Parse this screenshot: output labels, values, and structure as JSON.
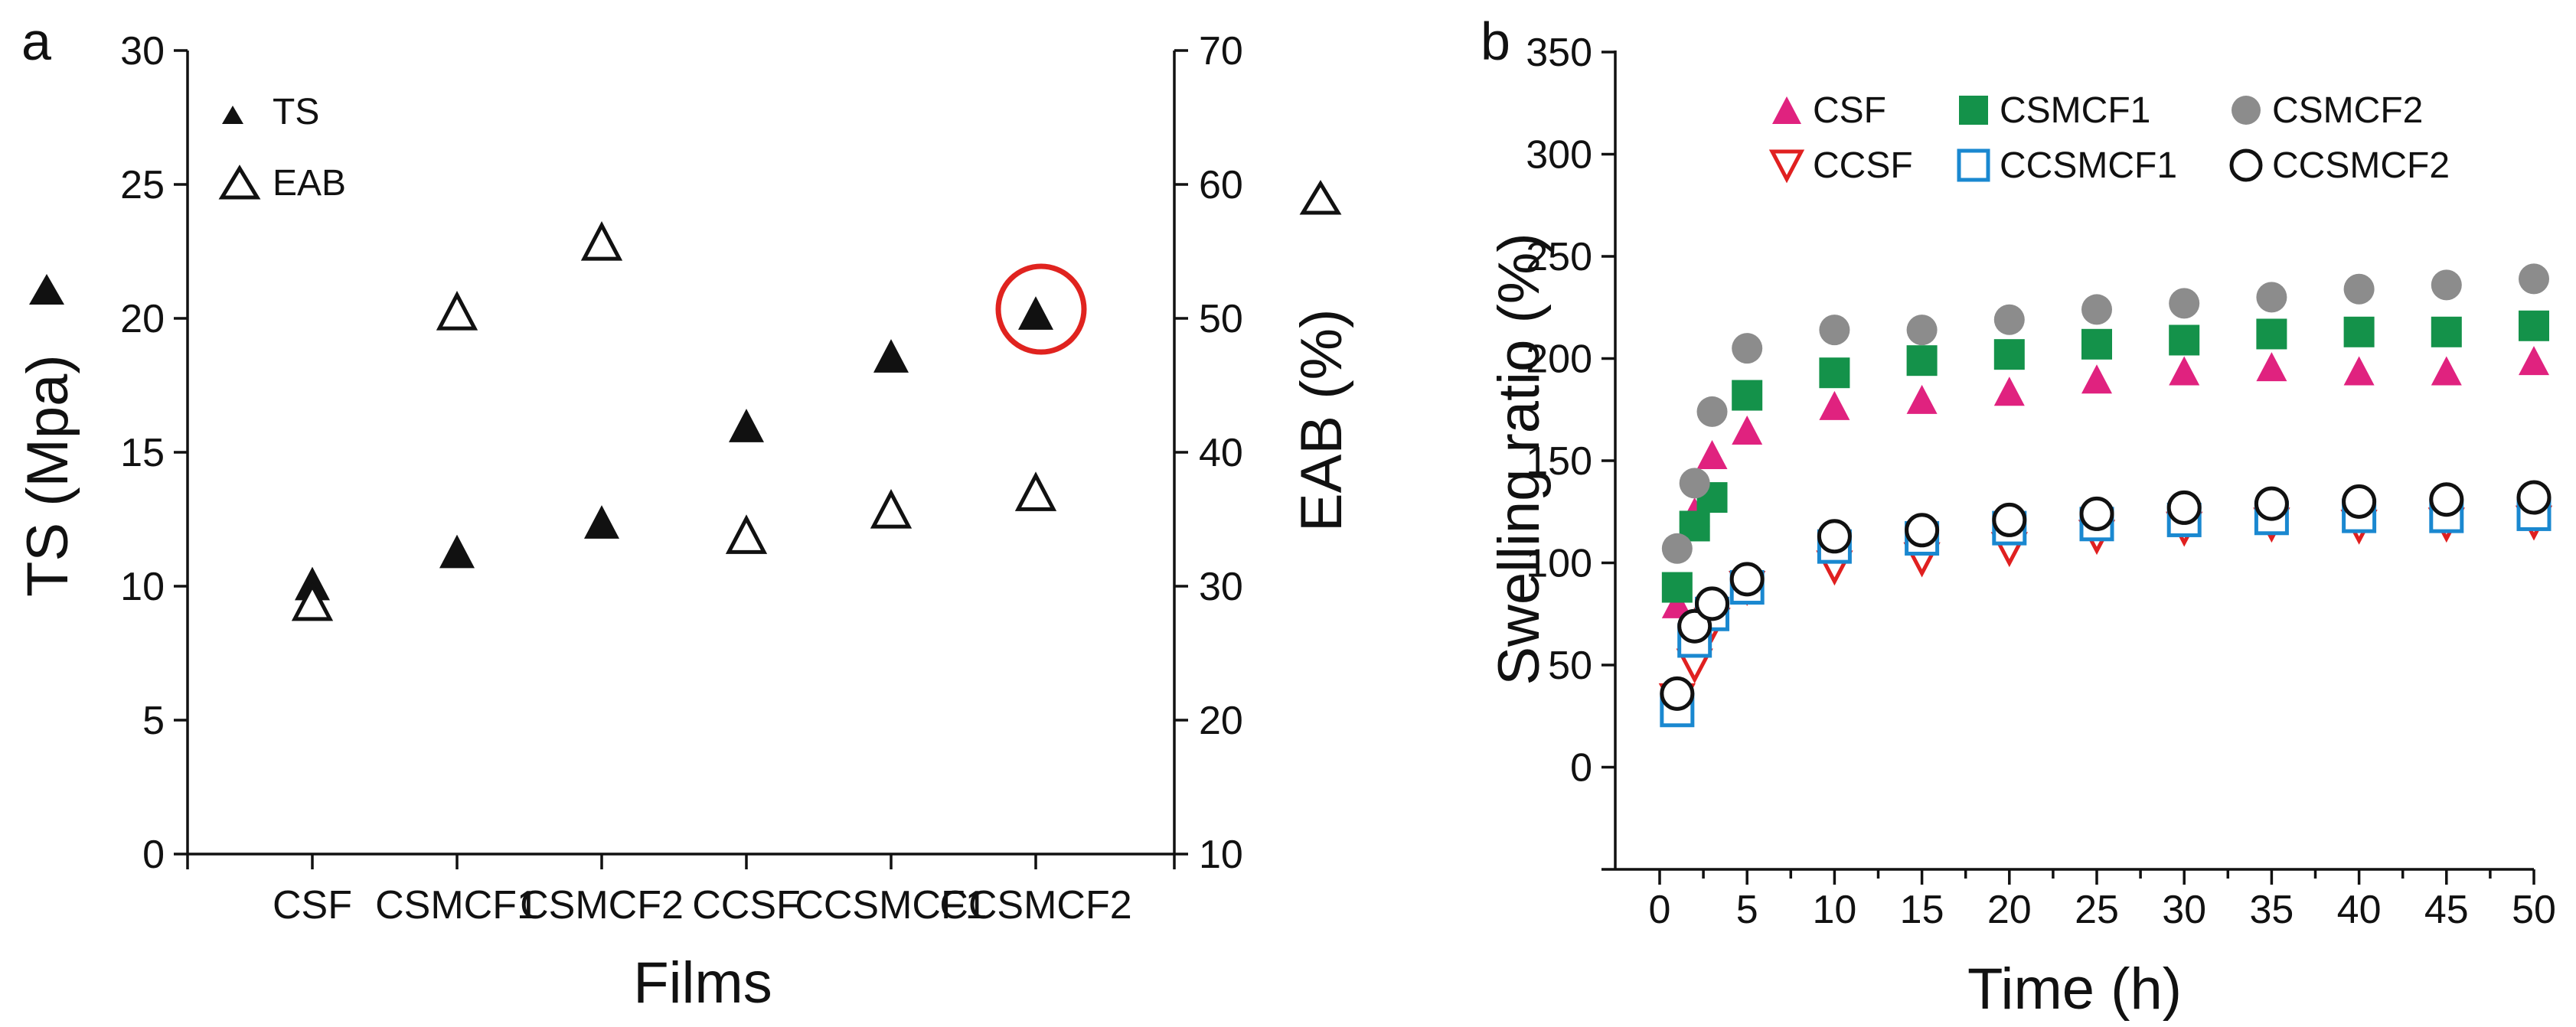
{
  "chart_data": [
    {
      "type": "scatter",
      "panel": "a",
      "xlabel": "Films",
      "ylabel": "TS (Mpa)",
      "y2label": "EAB (%)",
      "categories": [
        "CSF",
        "CSMCF1",
        "CSMCF2",
        "CCSF",
        "CCSMCF1",
        "CCSMCF2"
      ],
      "ylim": [
        0,
        30
      ],
      "yticks": [
        "0",
        "5",
        "10",
        "15",
        "20",
        "25",
        "30"
      ],
      "y2lim": [
        10,
        70
      ],
      "y2ticks": [
        "10",
        "20",
        "30",
        "40",
        "50",
        "60",
        "70"
      ],
      "series": [
        {
          "name": "TS",
          "axis": "left",
          "marker": "filled-triangle",
          "values": [
            10.1,
            11.3,
            12.4,
            16.0,
            18.6,
            20.2
          ]
        },
        {
          "name": "EAB",
          "axis": "right",
          "marker": "open-triangle",
          "values": [
            28.8,
            50.5,
            55.7,
            33.8,
            35.7,
            37.0
          ]
        }
      ],
      "legend": [
        "TS",
        "EAB"
      ],
      "annotation": "red circle highlighting CCSMCF2 TS point"
    },
    {
      "type": "scatter",
      "panel": "b",
      "xlabel": "Time (h)",
      "ylabel": "Swelling ratio (%)",
      "xlim": [
        0,
        50
      ],
      "xticks": [
        "0",
        "5",
        "10",
        "15",
        "20",
        "25",
        "30",
        "35",
        "40",
        "45",
        "50"
      ],
      "ylim": [
        -50,
        350
      ],
      "yticks": [
        "0",
        "50",
        "100",
        "150",
        "200",
        "250",
        "300",
        "350"
      ],
      "x": [
        1,
        2,
        3,
        5,
        10,
        15,
        20,
        25,
        30,
        35,
        40,
        45,
        50
      ],
      "series": [
        {
          "name": "CSF",
          "color": "#e0227f",
          "marker": "filled-triangle",
          "values": [
            80,
            125,
            153,
            165,
            177,
            180,
            184,
            190,
            194,
            196,
            194,
            194,
            199
          ]
        },
        {
          "name": "CSMCF1",
          "color": "#14924a",
          "marker": "filled-square",
          "values": [
            88,
            118,
            132,
            182,
            193,
            199,
            202,
            207,
            209,
            212,
            213,
            213,
            216
          ]
        },
        {
          "name": "CSMCF2",
          "color": "#8c8c8c",
          "marker": "filled-circle",
          "values": [
            107,
            139,
            174,
            205,
            214,
            214,
            219,
            224,
            227,
            230,
            234,
            236,
            239
          ]
        },
        {
          "name": "CCSF",
          "color": "#e02020",
          "marker": "open-down-triangle",
          "values": [
            33,
            50,
            70,
            88,
            98,
            102,
            107,
            113,
            117,
            119,
            118,
            119,
            120
          ]
        },
        {
          "name": "CCSMCF1",
          "color": "#1a88d0",
          "marker": "open-square",
          "values": [
            28,
            62,
            75,
            88,
            108,
            112,
            117,
            119,
            121,
            122,
            123,
            123,
            124
          ]
        },
        {
          "name": "CCSMCF2",
          "color": "#111111",
          "marker": "open-circle",
          "values": [
            36,
            69,
            80,
            92,
            113,
            116,
            121,
            124,
            127,
            129,
            130,
            131,
            132
          ]
        }
      ]
    }
  ],
  "panels": {
    "a": {
      "label": "a"
    },
    "b": {
      "label": "b"
    }
  }
}
